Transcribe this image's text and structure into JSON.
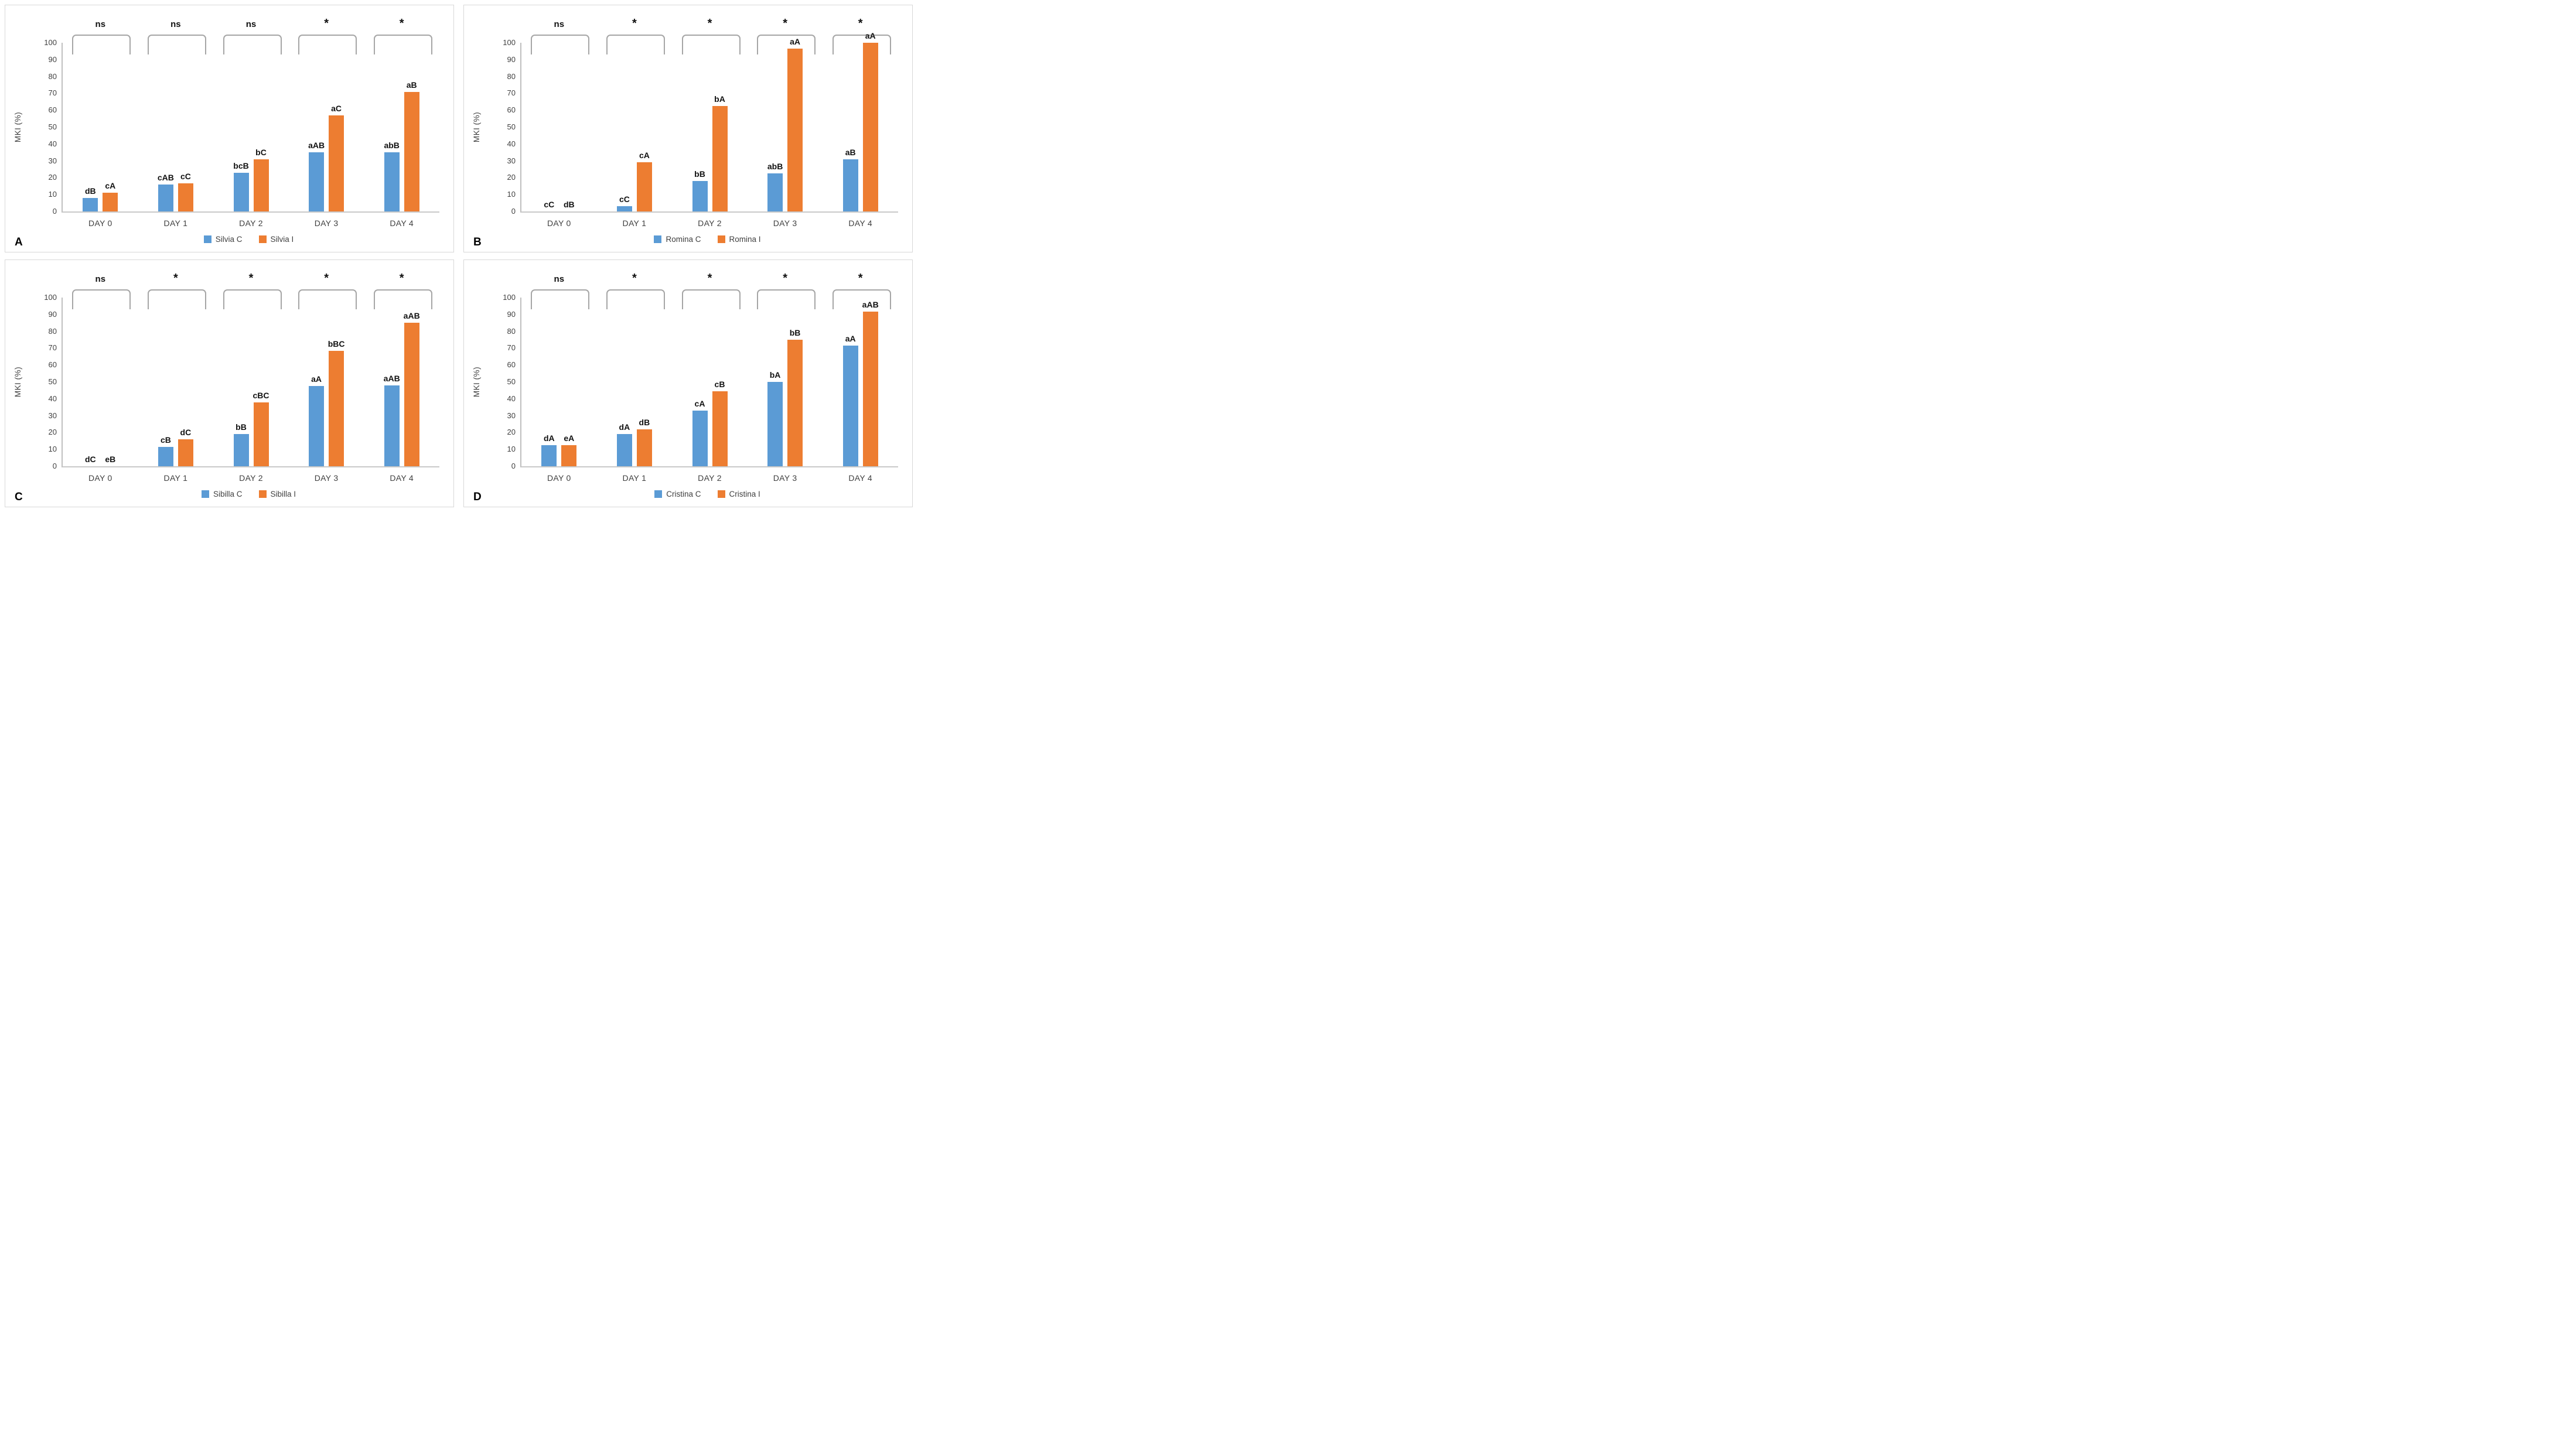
{
  "figure": {
    "background": "#ffffff",
    "panel_border_color": "#d8d8d8",
    "axis_color": "#bfbfbf",
    "bracket_color": "#a6a6a6",
    "tick_text_color": "#404040",
    "accent_blue": "#5B9BD5",
    "accent_orange": "#ED7D31"
  },
  "chart_data": [
    {
      "type": "bar",
      "panel_label": "A",
      "title": "",
      "xlabel": "",
      "ylabel": "MKI (%)",
      "ylim": [
        0,
        100
      ],
      "ytick_step": 10,
      "grid": false,
      "legend_position": "bottom",
      "categories": [
        "DAY 0",
        "DAY 1",
        "DAY 2",
        "DAY 3",
        "DAY 4"
      ],
      "significance": [
        "ns",
        "ns",
        "ns",
        "*",
        "*"
      ],
      "series": [
        {
          "name": "Silvia C",
          "color": "#5B9BD5",
          "values": [
            8,
            16,
            23,
            35,
            35
          ],
          "bar_labels": [
            "dB",
            "cAB",
            "bcB",
            "aAB",
            "abB"
          ]
        },
        {
          "name": "Silvia I",
          "color": "#ED7D31",
          "values": [
            11,
            16.5,
            31,
            57,
            71
          ],
          "bar_labels": [
            "cA",
            "cC",
            "bC",
            "aC",
            "aB"
          ]
        }
      ]
    },
    {
      "type": "bar",
      "panel_label": "B",
      "title": "",
      "xlabel": "",
      "ylabel": "MKI (%)",
      "ylim": [
        0,
        100
      ],
      "ytick_step": 10,
      "grid": false,
      "legend_position": "bottom",
      "categories": [
        "DAY 0",
        "DAY 1",
        "DAY 2",
        "DAY 3",
        "DAY 4"
      ],
      "significance": [
        "ns",
        "*",
        "*",
        "*",
        "*"
      ],
      "series": [
        {
          "name": "Romina C",
          "color": "#5B9BD5",
          "values": [
            0,
            3,
            18,
            22.5,
            31
          ],
          "bar_labels": [
            "cC",
            "cC",
            "bB",
            "abB",
            "aB"
          ]
        },
        {
          "name": "Romina I",
          "color": "#ED7D31",
          "values": [
            0,
            29,
            62.5,
            96.5,
            100
          ],
          "bar_labels": [
            "dB",
            "cA",
            "bA",
            "aA",
            "aA"
          ]
        }
      ]
    },
    {
      "type": "bar",
      "panel_label": "C",
      "title": "",
      "xlabel": "",
      "ylabel": "MKI (%)",
      "ylim": [
        0,
        100
      ],
      "ytick_step": 10,
      "grid": false,
      "legend_position": "bottom",
      "categories": [
        "DAY 0",
        "DAY 1",
        "DAY 2",
        "DAY 3",
        "DAY 4"
      ],
      "significance": [
        "ns",
        "*",
        "*",
        "*",
        "*"
      ],
      "series": [
        {
          "name": "Sibilla C",
          "color": "#5B9BD5",
          "values": [
            0,
            11.5,
            19,
            47.5,
            48
          ],
          "bar_labels": [
            "dC",
            "cB",
            "bB",
            "aA",
            "aAB"
          ]
        },
        {
          "name": "Sibilla I",
          "color": "#ED7D31",
          "values": [
            0,
            16,
            38,
            68.5,
            85
          ],
          "bar_labels": [
            "eB",
            "dC",
            "cBC",
            "bBC",
            "aAB"
          ]
        }
      ]
    },
    {
      "type": "bar",
      "panel_label": "D",
      "title": "",
      "xlabel": "",
      "ylabel": "MKI (%)",
      "ylim": [
        0,
        100
      ],
      "ytick_step": 10,
      "grid": false,
      "legend_position": "bottom",
      "categories": [
        "DAY 0",
        "DAY 1",
        "DAY 2",
        "DAY 3",
        "DAY 4"
      ],
      "significance": [
        "ns",
        "*",
        "*",
        "*",
        "*"
      ],
      "series": [
        {
          "name": "Cristina C",
          "color": "#5B9BD5",
          "values": [
            12.5,
            19,
            33,
            50,
            71.5
          ],
          "bar_labels": [
            "dA",
            "dA",
            "cA",
            "bA",
            "aA"
          ]
        },
        {
          "name": "Cristina I",
          "color": "#ED7D31",
          "values": [
            12.5,
            22,
            44.5,
            75,
            91.5
          ],
          "bar_labels": [
            "eA",
            "dB",
            "cB",
            "bB",
            "aAB"
          ]
        }
      ]
    }
  ]
}
